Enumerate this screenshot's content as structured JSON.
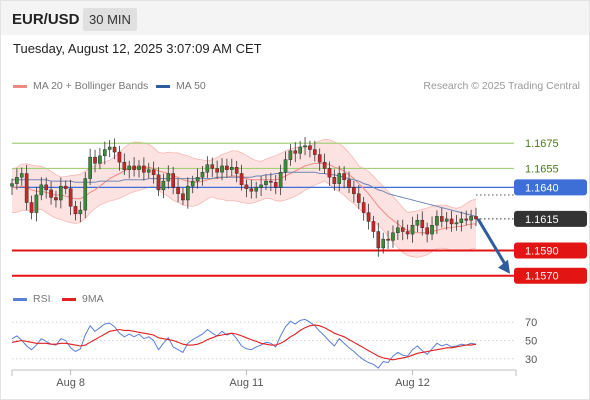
{
  "header": {
    "symbol": "EUR/USD",
    "interval": "30 MIN",
    "timestamp": "Tuesday, August 12, 2025 3:07:09 AM CET"
  },
  "legend": {
    "ma20_label": "MA 20 + Bollinger Bands",
    "ma50_label": "MA 50",
    "ma20_color": "#f28b82",
    "ma50_color": "#2f5d9e",
    "credit": "Research © 2025 Trading Central"
  },
  "rsi_legend": {
    "rsi_label": "RSI",
    "ma_label": "9MA",
    "rsi_color": "#5b7fd6",
    "ma_color": "#e02020"
  },
  "colors": {
    "bullish": "#3a8a3a",
    "bearish": "#c62828",
    "band_fill": "#fde2e2",
    "green_level": "#a6cf7a",
    "blue_level": "#3d6fd6",
    "red_level": "#e31414",
    "price_tag": "#333333",
    "arrow": "#2f5d9e"
  },
  "chart_data": [
    {
      "type": "candlestick",
      "title": "EUR/USD",
      "x_tick_labels": [
        "Aug 8",
        "Aug 11",
        "Aug 12"
      ],
      "x_tick_index": [
        12,
        48,
        82
      ],
      "ylim": [
        1.1565,
        1.1695
      ],
      "levels": [
        {
          "value": 1.1675,
          "label": "1.1675",
          "kind": "resistance",
          "color": "#a6cf7a"
        },
        {
          "value": 1.1655,
          "label": "1.1655",
          "kind": "resistance",
          "color": "#a6cf7a"
        },
        {
          "value": 1.164,
          "label": "1.1640",
          "kind": "pivot",
          "color": "#3d6fd6"
        },
        {
          "value": 1.1615,
          "label": "1.1615",
          "kind": "last",
          "color": "#333333"
        },
        {
          "value": 1.159,
          "label": "1.1590",
          "kind": "support",
          "color": "#e31414"
        },
        {
          "value": 1.157,
          "label": "1.1570",
          "kind": "support",
          "color": "#e31414"
        }
      ],
      "close": [
        1.1643,
        1.1648,
        1.1651,
        1.1628,
        1.162,
        1.1634,
        1.1642,
        1.1638,
        1.1632,
        1.163,
        1.1641,
        1.1639,
        1.1625,
        1.1619,
        1.1622,
        1.1647,
        1.1664,
        1.1659,
        1.1665,
        1.167,
        1.1672,
        1.1668,
        1.166,
        1.1654,
        1.1657,
        1.1654,
        1.1657,
        1.1652,
        1.1654,
        1.165,
        1.1638,
        1.1645,
        1.1651,
        1.164,
        1.1635,
        1.163,
        1.1641,
        1.1645,
        1.1648,
        1.1652,
        1.1658,
        1.1655,
        1.1652,
        1.1657,
        1.1654,
        1.1656,
        1.1651,
        1.1642,
        1.1639,
        1.1637,
        1.164,
        1.1642,
        1.1645,
        1.1644,
        1.164,
        1.1652,
        1.1662,
        1.1669,
        1.1667,
        1.1672,
        1.1673,
        1.167,
        1.1666,
        1.166,
        1.1655,
        1.1648,
        1.1643,
        1.1651,
        1.1646,
        1.164,
        1.1635,
        1.1628,
        1.162,
        1.1613,
        1.1605,
        1.1592,
        1.1599,
        1.1598,
        1.1604,
        1.1608,
        1.1605,
        1.1603,
        1.161,
        1.1614,
        1.1608,
        1.1603,
        1.161,
        1.1617,
        1.1613,
        1.1615,
        1.1611,
        1.1612,
        1.1615,
        1.1614,
        1.1617,
        1.1615
      ],
      "ma20": [
        1.164,
        1.164,
        1.1641,
        1.164,
        1.1638,
        1.1637,
        1.1637,
        1.1636,
        1.1635,
        1.1634,
        1.1634,
        1.1633,
        1.1632,
        1.1631,
        1.1631,
        1.1633,
        1.1636,
        1.1638,
        1.1641,
        1.1644,
        1.1647,
        1.1649,
        1.1651,
        1.1653,
        1.1655,
        1.1656,
        1.1656,
        1.1656,
        1.1656,
        1.1655,
        1.1653,
        1.1652,
        1.1651,
        1.1649,
        1.1648,
        1.1646,
        1.1645,
        1.1644,
        1.1644,
        1.1645,
        1.1646,
        1.1647,
        1.1647,
        1.1648,
        1.1648,
        1.1649,
        1.1649,
        1.1648,
        1.1647,
        1.1646,
        1.1646,
        1.1646,
        1.1646,
        1.1646,
        1.1646,
        1.1647,
        1.1649,
        1.1651,
        1.1653,
        1.1655,
        1.1657,
        1.1658,
        1.1659,
        1.1659,
        1.1659,
        1.1658,
        1.1656,
        1.1655,
        1.1653,
        1.165,
        1.1647,
        1.1643,
        1.1639,
        1.1635,
        1.163,
        1.1625,
        1.1621,
        1.1617,
        1.1614,
        1.1611,
        1.1608,
        1.1606,
        1.1605,
        1.1604,
        1.1604,
        1.1604,
        1.1605,
        1.1606,
        1.1607,
        1.1608,
        1.1608,
        1.1609,
        1.1609,
        1.161,
        1.1611,
        1.1611
      ],
      "ma50": [
        1.1646,
        1.1646,
        1.1646,
        1.1646,
        1.1646,
        1.1646,
        1.1646,
        1.1646,
        1.1645,
        1.1645,
        1.1645,
        1.1645,
        1.1645,
        1.1644,
        1.1644,
        1.1644,
        1.1644,
        1.1644,
        1.1645,
        1.1645,
        1.1645,
        1.1645,
        1.1645,
        1.1646,
        1.1646,
        1.1646,
        1.1646,
        1.1646,
        1.1647,
        1.1647,
        1.1647,
        1.1647,
        1.1647,
        1.1647,
        1.1647,
        1.1647,
        1.1647,
        1.1647,
        1.1647,
        1.1647,
        1.1647,
        1.1647,
        1.1648,
        1.1648,
        1.1648,
        1.1648,
        1.1648,
        1.1648,
        1.1648,
        1.1648,
        1.1649,
        1.1649,
        1.165,
        1.165,
        1.1651,
        1.1651,
        1.1652,
        1.1652,
        1.1652,
        1.1652,
        1.1652,
        1.1652,
        1.1652,
        1.1651,
        1.1651,
        1.165,
        1.165,
        1.1649,
        1.1648,
        1.1647,
        1.1646,
        1.1645,
        1.1643,
        1.1642,
        1.164,
        1.1638,
        1.1637,
        1.1635,
        1.1634,
        1.1633,
        1.1632,
        1.1631,
        1.163,
        1.1629,
        1.1628,
        1.1627,
        1.1626,
        1.1625,
        1.1624,
        1.1623,
        1.1622,
        1.1621,
        1.162,
        1.1619,
        1.1618,
        1.1617
      ],
      "forecast_arrow": {
        "from": 1.1615,
        "to": 1.157
      }
    },
    {
      "type": "line",
      "title": "RSI",
      "ylim": [
        20,
        80
      ],
      "y_tick_labels": [
        "70",
        "50",
        "30"
      ],
      "y_tick_values": [
        70,
        50,
        30
      ],
      "series": [
        {
          "name": "RSI",
          "color": "#5b7fd6",
          "values": [
            52,
            55,
            50,
            44,
            40,
            45,
            52,
            49,
            46,
            45,
            52,
            50,
            42,
            38,
            41,
            56,
            66,
            60,
            64,
            68,
            69,
            65,
            58,
            54,
            57,
            54,
            57,
            52,
            54,
            50,
            40,
            47,
            53,
            43,
            40,
            37,
            47,
            51,
            54,
            57,
            62,
            58,
            55,
            60,
            56,
            58,
            52,
            44,
            41,
            40,
            43,
            45,
            48,
            47,
            43,
            55,
            65,
            71,
            68,
            72,
            73,
            70,
            66,
            60,
            55,
            49,
            44,
            52,
            47,
            42,
            38,
            33,
            29,
            26,
            24,
            20,
            27,
            26,
            33,
            37,
            34,
            33,
            40,
            44,
            39,
            35,
            41,
            47,
            44,
            46,
            43,
            44,
            46,
            45,
            47,
            46
          ]
        },
        {
          "name": "9MA",
          "color": "#e02020",
          "values": [
            48,
            49,
            50,
            49,
            48,
            47,
            47,
            47,
            46,
            46,
            47,
            47,
            46,
            45,
            44,
            45,
            48,
            51,
            54,
            57,
            60,
            61,
            62,
            61,
            61,
            60,
            59,
            58,
            57,
            56,
            53,
            52,
            51,
            50,
            48,
            46,
            45,
            45,
            46,
            48,
            51,
            53,
            55,
            56,
            57,
            58,
            57,
            55,
            53,
            51,
            49,
            47,
            46,
            45,
            45,
            47,
            50,
            54,
            57,
            61,
            64,
            66,
            67,
            66,
            64,
            61,
            58,
            56,
            54,
            51,
            48,
            45,
            42,
            39,
            36,
            33,
            31,
            30,
            29,
            30,
            31,
            32,
            34,
            36,
            37,
            38,
            39,
            40,
            41,
            42,
            42,
            43,
            44,
            45,
            45,
            46
          ]
        }
      ]
    }
  ]
}
